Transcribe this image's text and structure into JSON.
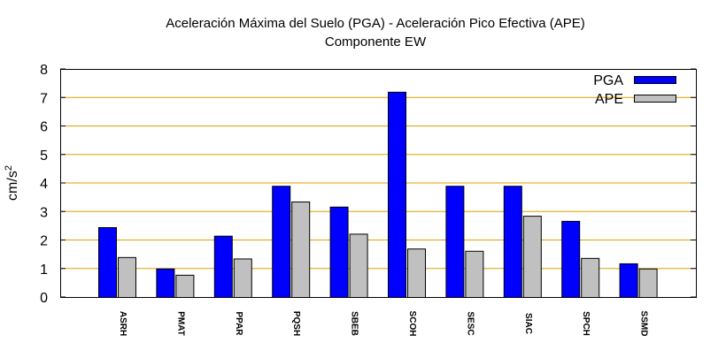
{
  "chart_data": {
    "type": "bar",
    "title": "Aceleración Máxima del Suelo (PGA) -  Aceleración Pico Efectiva (APE)",
    "subtitle": "Componente EW",
    "ylabel": "cm/s",
    "ylabel_superscript": "2",
    "xlabel": "",
    "ylim": [
      0,
      8
    ],
    "yticks": [
      "0",
      "1",
      "2",
      "3",
      "4",
      "5",
      "6",
      "7",
      "8"
    ],
    "grid": true,
    "legend_position": "top-right",
    "categories": [
      "ASRH",
      "PMAT",
      "PPAR",
      "PQSH",
      "SBEB",
      "SCOH",
      "SESC",
      "SIAC",
      "SPCH",
      "SSMD"
    ],
    "series": [
      {
        "name": "PGA",
        "color": "#0000ff",
        "values": [
          2.45,
          1.0,
          2.15,
          3.9,
          3.17,
          7.2,
          3.9,
          3.9,
          2.67,
          1.18
        ]
      },
      {
        "name": "APE",
        "color": "#c0c0c0",
        "values": [
          1.4,
          0.78,
          1.35,
          3.35,
          2.22,
          1.7,
          1.62,
          2.85,
          1.37,
          1.0
        ]
      }
    ],
    "gridline_color": "#e0a000",
    "bar_outline_color": "#000000"
  }
}
